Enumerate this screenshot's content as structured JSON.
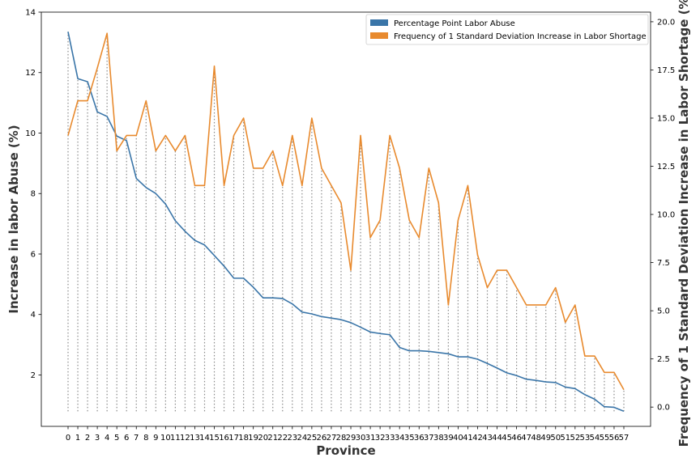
{
  "chart_data": {
    "type": "line",
    "xlabel": "Province",
    "ylabel_left": "Increase in labor Abuse (%)",
    "ylabel_right": "Frequency of 1 Standard Deviation Increase in Labor Shortage (%)",
    "x": [
      0,
      1,
      2,
      3,
      4,
      5,
      6,
      7,
      8,
      9,
      10,
      11,
      12,
      13,
      14,
      15,
      16,
      17,
      18,
      19,
      20,
      21,
      22,
      23,
      24,
      25,
      26,
      27,
      28,
      29,
      30,
      31,
      32,
      33,
      34,
      35,
      36,
      37,
      38,
      39,
      40,
      41,
      42,
      43,
      44,
      45,
      46,
      47,
      48,
      49,
      50,
      51,
      52,
      53,
      54,
      55,
      56,
      57
    ],
    "ylim_left": [
      0.3,
      14
    ],
    "ylim_right": [
      -1,
      20.5
    ],
    "yticks_left": [
      2,
      4,
      6,
      8,
      10,
      12,
      14
    ],
    "yticks_right": [
      0.0,
      2.5,
      5.0,
      7.5,
      10.0,
      12.5,
      15.0,
      17.5,
      20.0
    ],
    "ytick_labels_right": [
      "0.0",
      "2.5",
      "5.0",
      "7.5",
      "10.0",
      "12.5",
      "15.0",
      "17.5",
      "20.0"
    ],
    "stem_baseline_left": 0.8,
    "legend_position": "top-right",
    "series": [
      {
        "name": "Percentage Point Labor Abuse",
        "axis": "left",
        "color": "#3a75a8",
        "values": [
          13.35,
          11.8,
          11.7,
          10.7,
          10.55,
          9.9,
          9.75,
          8.5,
          8.2,
          8.0,
          7.65,
          7.1,
          6.75,
          6.45,
          6.3,
          5.95,
          5.6,
          5.2,
          5.2,
          4.9,
          4.55,
          4.55,
          4.53,
          4.35,
          4.08,
          4.02,
          3.93,
          3.88,
          3.83,
          3.73,
          3.58,
          3.42,
          3.37,
          3.33,
          2.91,
          2.8,
          2.8,
          2.78,
          2.74,
          2.7,
          2.6,
          2.6,
          2.52,
          2.38,
          2.23,
          2.07,
          1.98,
          1.86,
          1.82,
          1.77,
          1.75,
          1.6,
          1.55,
          1.35,
          1.2,
          0.95,
          0.93,
          0.8
        ]
      },
      {
        "name": "Frequency of 1 Standard Deviation Increase in Labor Shortage",
        "axis": "right",
        "color": "#e88a2e",
        "values": [
          14.1,
          15.9,
          15.9,
          17.6,
          19.4,
          13.3,
          14.1,
          14.1,
          15.9,
          13.3,
          14.1,
          13.3,
          14.1,
          11.5,
          11.5,
          17.7,
          11.5,
          14.1,
          15.0,
          12.4,
          12.4,
          13.3,
          11.5,
          14.1,
          11.5,
          15.0,
          12.4,
          11.5,
          10.6,
          7.1,
          14.1,
          8.8,
          9.7,
          14.1,
          12.4,
          9.7,
          8.8,
          12.4,
          10.6,
          5.3,
          9.7,
          11.5,
          7.9,
          6.2,
          7.1,
          7.1,
          6.2,
          5.3,
          5.3,
          5.3,
          6.2,
          4.4,
          5.3,
          2.65,
          2.65,
          1.8,
          1.8,
          0.9
        ]
      }
    ]
  }
}
